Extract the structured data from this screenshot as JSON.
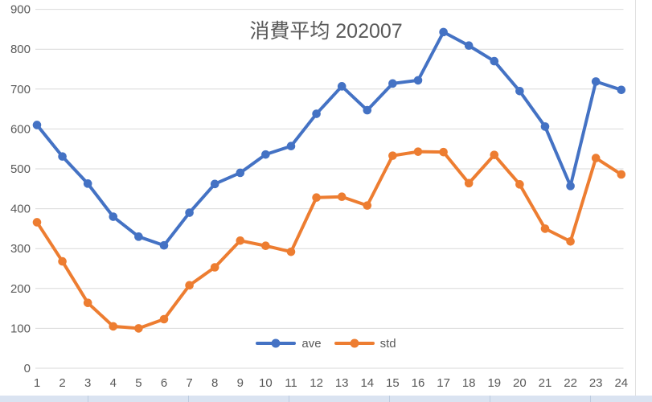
{
  "title": "消費平均 202007",
  "colors": {
    "ave": "#4472C4",
    "std": "#ED7D31",
    "gridline": "#D9D9D9",
    "axis_text": "#595959",
    "title_text": "#595959",
    "spreadsheet_row": "#dae3f1"
  },
  "legend": {
    "items": [
      {
        "label": "ave",
        "color": "#4472C4"
      },
      {
        "label": "std",
        "color": "#ED7D31"
      }
    ],
    "position": "bottom-center"
  },
  "chart_data": {
    "type": "line",
    "title": "消費平均 202007",
    "categories": [
      "1",
      "2",
      "3",
      "4",
      "5",
      "6",
      "7",
      "8",
      "9",
      "10",
      "11",
      "12",
      "13",
      "14",
      "15",
      "16",
      "17",
      "18",
      "19",
      "20",
      "21",
      "22",
      "23",
      "24"
    ],
    "series": [
      {
        "name": "ave",
        "color": "#4472C4",
        "marker": "circle",
        "values": [
          610,
          531,
          463,
          380,
          330,
          308,
          390,
          462,
          490,
          536,
          557,
          638,
          707,
          647,
          714,
          722,
          843,
          809,
          770,
          695,
          606,
          457,
          719,
          698
        ]
      },
      {
        "name": "std",
        "color": "#ED7D31",
        "marker": "circle",
        "values": [
          366,
          268,
          164,
          105,
          100,
          123,
          208,
          253,
          320,
          307,
          292,
          428,
          430,
          408,
          533,
          543,
          542,
          464,
          535,
          461,
          350,
          318,
          527,
          486
        ]
      }
    ],
    "xlabel": "",
    "ylabel": "",
    "ylim": [
      0,
      900
    ],
    "yticks": [
      0,
      100,
      200,
      300,
      400,
      500,
      600,
      700,
      800,
      900
    ],
    "grid": true,
    "legend_position": "bottom-center"
  }
}
